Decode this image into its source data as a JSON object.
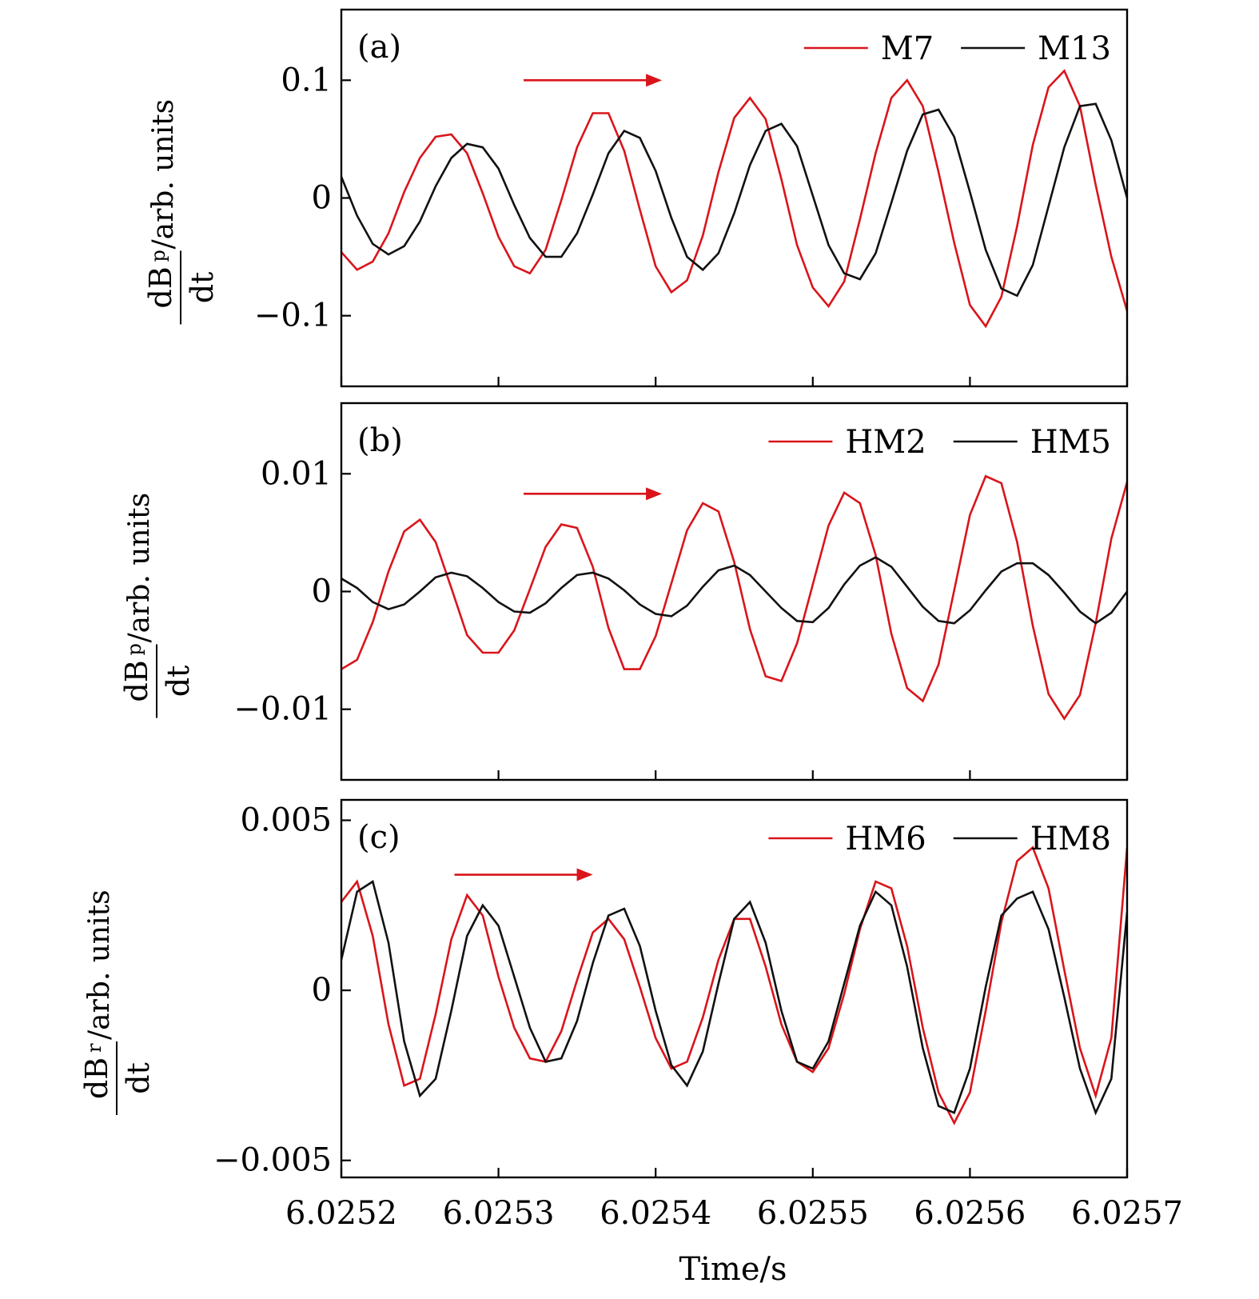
{
  "colors": {
    "red": "#d9151b",
    "black": "#111111",
    "axis": "#000000"
  },
  "x_axis": {
    "ticks": [
      "6.0252",
      "6.0253",
      "6.0254",
      "6.0255",
      "6.0256",
      "6.0257"
    ],
    "label": "Time/s"
  },
  "chart_data": [
    {
      "type": "line",
      "panel": "(a)",
      "ylabel": {
        "numerator": "dB",
        "subscript": "p",
        "denominator": "dt",
        "units": "/arb. units"
      },
      "xlim": [
        6.0252,
        6.0257
      ],
      "ylim": [
        -0.16,
        0.16
      ],
      "yticks": [
        -0.1,
        0,
        0.1
      ],
      "ytick_labels": [
        "−0.1",
        "0",
        "0.1"
      ],
      "legend_position": "top-right",
      "arrow": {
        "x_from": 6.025316,
        "x_to": 6.025404,
        "y": 0.1,
        "color": "red"
      },
      "series": [
        {
          "name": "M7",
          "color": "red",
          "x": [
            6.0252,
            6.02521,
            6.02522,
            6.02523,
            6.02524,
            6.02525,
            6.02526,
            6.02527,
            6.02528,
            6.02529,
            6.0253,
            6.02531,
            6.02532,
            6.02533,
            6.02534,
            6.02535,
            6.02536,
            6.02537,
            6.02538,
            6.02539,
            6.0254,
            6.02541,
            6.02542,
            6.02543,
            6.02544,
            6.02545,
            6.02546,
            6.02547,
            6.02548,
            6.02549,
            6.0255,
            6.02551,
            6.02552,
            6.02553,
            6.02554,
            6.02555,
            6.02556,
            6.02557,
            6.02558,
            6.02559,
            6.0256,
            6.02561,
            6.02562,
            6.02563,
            6.02564,
            6.02565,
            6.02566,
            6.02567,
            6.02568,
            6.02569,
            6.0257
          ],
          "y": [
            -0.046,
            -0.061,
            -0.054,
            -0.03,
            0.005,
            0.034,
            0.052,
            0.054,
            0.038,
            0.004,
            -0.033,
            -0.058,
            -0.064,
            -0.044,
            -0.002,
            0.043,
            0.072,
            0.072,
            0.04,
            -0.01,
            -0.058,
            -0.08,
            -0.07,
            -0.032,
            0.022,
            0.068,
            0.085,
            0.067,
            0.016,
            -0.04,
            -0.076,
            -0.092,
            -0.071,
            -0.018,
            0.038,
            0.085,
            0.1,
            0.078,
            0.022,
            -0.038,
            -0.091,
            -0.109,
            -0.084,
            -0.024,
            0.045,
            0.094,
            0.108,
            0.078,
            0.011,
            -0.05,
            -0.096
          ]
        },
        {
          "name": "M13",
          "color": "black",
          "x": [
            6.0252,
            6.02521,
            6.02522,
            6.02523,
            6.02524,
            6.02525,
            6.02526,
            6.02527,
            6.02528,
            6.02529,
            6.0253,
            6.02531,
            6.02532,
            6.02533,
            6.02534,
            6.02535,
            6.02536,
            6.02537,
            6.02538,
            6.02539,
            6.0254,
            6.02541,
            6.02542,
            6.02543,
            6.02544,
            6.02545,
            6.02546,
            6.02547,
            6.02548,
            6.02549,
            6.0255,
            6.02551,
            6.02552,
            6.02553,
            6.02554,
            6.02555,
            6.02556,
            6.02557,
            6.02558,
            6.02559,
            6.0256,
            6.02561,
            6.02562,
            6.02563,
            6.02564,
            6.02565,
            6.02566,
            6.02567,
            6.02568,
            6.02569,
            6.0257
          ],
          "y": [
            0.018,
            -0.015,
            -0.039,
            -0.048,
            -0.041,
            -0.02,
            0.01,
            0.034,
            0.046,
            0.043,
            0.025,
            -0.006,
            -0.034,
            -0.05,
            -0.05,
            -0.03,
            0.003,
            0.038,
            0.057,
            0.051,
            0.023,
            -0.017,
            -0.05,
            -0.061,
            -0.047,
            -0.013,
            0.028,
            0.057,
            0.063,
            0.044,
            0.002,
            -0.04,
            -0.064,
            -0.069,
            -0.047,
            -0.004,
            0.04,
            0.071,
            0.075,
            0.052,
            0.005,
            -0.044,
            -0.077,
            -0.083,
            -0.057,
            -0.007,
            0.043,
            0.078,
            0.08,
            0.049,
            0.0
          ]
        }
      ]
    },
    {
      "type": "line",
      "panel": "(b)",
      "ylabel": {
        "numerator": "dB",
        "subscript": "p",
        "denominator": "dt",
        "units": "/arb. units"
      },
      "xlim": [
        6.0252,
        6.0257
      ],
      "ylim": [
        -0.016,
        0.016
      ],
      "yticks": [
        -0.01,
        0,
        0.01
      ],
      "ytick_labels": [
        "−0.01",
        "0",
        "0.01"
      ],
      "legend_position": "top-right",
      "arrow": {
        "x_from": 6.025316,
        "x_to": 6.025404,
        "y": 0.0083,
        "color": "red"
      },
      "series": [
        {
          "name": "HM2",
          "color": "red",
          "x": [
            6.0252,
            6.02521,
            6.02522,
            6.02523,
            6.02524,
            6.02525,
            6.02526,
            6.02527,
            6.02528,
            6.02529,
            6.0253,
            6.02531,
            6.02532,
            6.02533,
            6.02534,
            6.02535,
            6.02536,
            6.02537,
            6.02538,
            6.02539,
            6.0254,
            6.02541,
            6.02542,
            6.02543,
            6.02544,
            6.02545,
            6.02546,
            6.02547,
            6.02548,
            6.02549,
            6.0255,
            6.02551,
            6.02552,
            6.02553,
            6.02554,
            6.02555,
            6.02556,
            6.02557,
            6.02558,
            6.02559,
            6.0256,
            6.02561,
            6.02562,
            6.02563,
            6.02564,
            6.02565,
            6.02566,
            6.02567,
            6.02568,
            6.02569,
            6.0257
          ],
          "y": [
            -0.0066,
            -0.0058,
            -0.0026,
            0.0017,
            0.0051,
            0.0061,
            0.0042,
            0.0003,
            -0.0037,
            -0.0052,
            -0.0052,
            -0.0033,
            0.0002,
            0.0038,
            0.0057,
            0.0054,
            0.0021,
            -0.0031,
            -0.0066,
            -0.0066,
            -0.0038,
            0.0007,
            0.0052,
            0.0075,
            0.0068,
            0.0025,
            -0.0032,
            -0.0072,
            -0.0076,
            -0.0044,
            0.0006,
            0.0056,
            0.0084,
            0.0075,
            0.0031,
            -0.0036,
            -0.0082,
            -0.0093,
            -0.0062,
            0.0001,
            0.0065,
            0.0098,
            0.0092,
            0.0042,
            -0.0029,
            -0.0087,
            -0.0108,
            -0.0088,
            -0.0027,
            0.0045,
            0.0093
          ]
        },
        {
          "name": "HM5",
          "color": "black",
          "x": [
            6.0252,
            6.02521,
            6.02522,
            6.02523,
            6.02524,
            6.02525,
            6.02526,
            6.02527,
            6.02528,
            6.02529,
            6.0253,
            6.02531,
            6.02532,
            6.02533,
            6.02534,
            6.02535,
            6.02536,
            6.02537,
            6.02538,
            6.02539,
            6.0254,
            6.02541,
            6.02542,
            6.02543,
            6.02544,
            6.02545,
            6.02546,
            6.02547,
            6.02548,
            6.02549,
            6.0255,
            6.02551,
            6.02552,
            6.02553,
            6.02554,
            6.02555,
            6.02556,
            6.02557,
            6.02558,
            6.02559,
            6.0256,
            6.02561,
            6.02562,
            6.02563,
            6.02564,
            6.02565,
            6.02566,
            6.02567,
            6.02568,
            6.02569,
            6.0257
          ],
          "y": [
            0.0011,
            0.0003,
            -0.0009,
            -0.0015,
            -0.0011,
            0.0,
            0.0012,
            0.0016,
            0.0013,
            0.0003,
            -0.0009,
            -0.0017,
            -0.0018,
            -0.001,
            0.0003,
            0.0014,
            0.0016,
            0.0011,
            0.0001,
            -0.0011,
            -0.0019,
            -0.0021,
            -0.0012,
            0.0004,
            0.0018,
            0.0022,
            0.0014,
            0.0,
            -0.0014,
            -0.0025,
            -0.0026,
            -0.0014,
            0.0006,
            0.0022,
            0.0029,
            0.0021,
            0.0004,
            -0.0013,
            -0.0025,
            -0.0027,
            -0.0016,
            0.0001,
            0.0017,
            0.0024,
            0.0024,
            0.0014,
            -0.0001,
            -0.0017,
            -0.0027,
            -0.0018,
            0.0
          ]
        }
      ]
    },
    {
      "type": "line",
      "panel": "(c)",
      "ylabel": {
        "numerator": "dB",
        "subscript": "r",
        "denominator": "dt",
        "units": "/arb. units"
      },
      "xlim": [
        6.0252,
        6.0257
      ],
      "ylim": [
        -0.0055,
        0.0056
      ],
      "yticks": [
        -0.005,
        0,
        0.005
      ],
      "ytick_labels": [
        "−0.005",
        "0",
        "0.005"
      ],
      "legend_position": "top-right",
      "arrow": {
        "x_from": 6.025272,
        "x_to": 6.02536,
        "y": 0.0034,
        "color": "red"
      },
      "series": [
        {
          "name": "HM6",
          "color": "red",
          "x": [
            6.0252,
            6.02521,
            6.02522,
            6.02523,
            6.02524,
            6.02525,
            6.02526,
            6.02527,
            6.02528,
            6.02529,
            6.0253,
            6.02531,
            6.02532,
            6.02533,
            6.02534,
            6.02535,
            6.02536,
            6.02537,
            6.02538,
            6.02539,
            6.0254,
            6.02541,
            6.02542,
            6.02543,
            6.02544,
            6.02545,
            6.02546,
            6.02547,
            6.02548,
            6.02549,
            6.0255,
            6.02551,
            6.02552,
            6.02553,
            6.02554,
            6.02555,
            6.02556,
            6.02557,
            6.02558,
            6.02559,
            6.0256,
            6.02561,
            6.02562,
            6.02563,
            6.02564,
            6.02565,
            6.02566,
            6.02567,
            6.02568,
            6.02569,
            6.0257
          ],
          "y": [
            0.0026,
            0.0032,
            0.0016,
            -0.001,
            -0.0028,
            -0.0026,
            -0.0007,
            0.0015,
            0.0028,
            0.0022,
            0.0004,
            -0.0011,
            -0.002,
            -0.0021,
            -0.0012,
            0.0003,
            0.0017,
            0.0021,
            0.0015,
            0.0001,
            -0.0014,
            -0.0023,
            -0.0021,
            -0.0008,
            0.0009,
            0.0021,
            0.0021,
            0.0007,
            -0.001,
            -0.0021,
            -0.0024,
            -0.0017,
            -0.0001,
            0.0018,
            0.0032,
            0.003,
            0.0013,
            -0.0011,
            -0.003,
            -0.0039,
            -0.003,
            -0.0006,
            0.002,
            0.0038,
            0.0042,
            0.003,
            0.0006,
            -0.0017,
            -0.0031,
            -0.0014,
            0.0042
          ]
        },
        {
          "name": "HM8",
          "color": "black",
          "x": [
            6.0252,
            6.02521,
            6.02522,
            6.02523,
            6.02524,
            6.02525,
            6.02526,
            6.02527,
            6.02528,
            6.02529,
            6.0253,
            6.02531,
            6.02532,
            6.02533,
            6.02534,
            6.02535,
            6.02536,
            6.02537,
            6.02538,
            6.02539,
            6.0254,
            6.02541,
            6.02542,
            6.02543,
            6.02544,
            6.02545,
            6.02546,
            6.02547,
            6.02548,
            6.02549,
            6.0255,
            6.02551,
            6.02552,
            6.02553,
            6.02554,
            6.02555,
            6.02556,
            6.02557,
            6.02558,
            6.02559,
            6.0256,
            6.02561,
            6.02562,
            6.02563,
            6.02564,
            6.02565,
            6.02566,
            6.02567,
            6.02568,
            6.02569,
            6.0257
          ],
          "y": [
            0.0009,
            0.0029,
            0.0032,
            0.0014,
            -0.0015,
            -0.0031,
            -0.0026,
            -0.0006,
            0.0016,
            0.0025,
            0.0019,
            0.0004,
            -0.0011,
            -0.0021,
            -0.002,
            -0.0009,
            0.0008,
            0.0022,
            0.0024,
            0.0013,
            -0.0006,
            -0.0022,
            -0.0028,
            -0.0018,
            0.0002,
            0.0021,
            0.0026,
            0.0014,
            -0.0006,
            -0.0021,
            -0.0023,
            -0.0015,
            0.0002,
            0.0019,
            0.0029,
            0.0025,
            0.0007,
            -0.0017,
            -0.0034,
            -0.0036,
            -0.0023,
            0.0001,
            0.0022,
            0.0027,
            0.0029,
            0.0018,
            -0.0002,
            -0.0023,
            -0.0036,
            -0.0026,
            0.0023
          ]
        }
      ]
    }
  ]
}
